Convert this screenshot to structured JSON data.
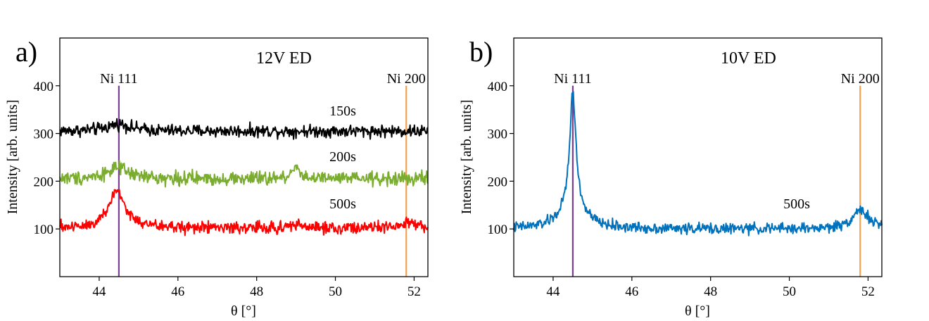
{
  "figure": {
    "description_labels": [
      "a)",
      "b)"
    ]
  },
  "chart_data": [
    {
      "type": "line",
      "panel_label": "a)",
      "title": "12V ED",
      "xlabel": "θ [°]",
      "ylabel": "Intensity [arb. units]",
      "xlim": [
        43.0,
        52.35
      ],
      "ylim": [
        0,
        500
      ],
      "xticks": [
        44,
        46,
        48,
        50,
        52
      ],
      "yticks": [
        100,
        200,
        300,
        400
      ],
      "grid": false,
      "reference_lines": [
        {
          "label": "Ni 111",
          "x": 44.5,
          "color": "#7b3f98"
        },
        {
          "label": "Ni 200",
          "x": 51.8,
          "color": "#f2a154"
        }
      ],
      "series": [
        {
          "name": "150s",
          "label_at": [
            49.85,
            338
          ],
          "color": "#000000",
          "baseline": 305,
          "noise": 8,
          "peaks": [
            {
              "x": 44.5,
              "height": 15,
              "width": 0.35
            }
          ]
        },
        {
          "name": "200s",
          "label_at": [
            49.85,
            242
          ],
          "color": "#7aad2f",
          "baseline": 205,
          "noise": 9,
          "peaks": [
            {
              "x": 44.45,
              "height": 22,
              "width": 0.35
            },
            {
              "x": 49.0,
              "height": 30,
              "width": 0.1
            }
          ]
        },
        {
          "name": "500s",
          "label_at": [
            49.85,
            143
          ],
          "color": "#ff0000",
          "baseline": 102,
          "noise": 8,
          "peaks": [
            {
              "x": 44.45,
              "height": 78,
              "width": 0.25
            },
            {
              "x": 49.0,
              "height": 8,
              "width": 0.15
            },
            {
              "x": 51.9,
              "height": 8,
              "width": 0.25
            }
          ]
        }
      ]
    },
    {
      "type": "line",
      "panel_label": "b)",
      "title": "10V ED",
      "xlabel": "θ [°]",
      "ylabel": "Intensity [arb. units]",
      "xlim": [
        43.0,
        52.35
      ],
      "ylim": [
        0,
        500
      ],
      "xticks": [
        44,
        46,
        48,
        50,
        52
      ],
      "yticks": [
        100,
        200,
        300,
        400
      ],
      "grid": false,
      "reference_lines": [
        {
          "label": "Ni 111",
          "x": 44.5,
          "color": "#7b3f98"
        },
        {
          "label": "Ni 200",
          "x": 51.8,
          "color": "#f2a154"
        }
      ],
      "series": [
        {
          "name": "500s",
          "label_at": [
            49.85,
            143
          ],
          "color": "#0072bd",
          "baseline": 100,
          "noise": 7,
          "peaks": [
            {
              "x": 44.5,
              "height": 240,
              "width": 0.09
            },
            {
              "x": 44.5,
              "height": 50,
              "width": 0.35
            },
            {
              "x": 51.8,
              "height": 40,
              "width": 0.25
            }
          ]
        }
      ]
    }
  ]
}
